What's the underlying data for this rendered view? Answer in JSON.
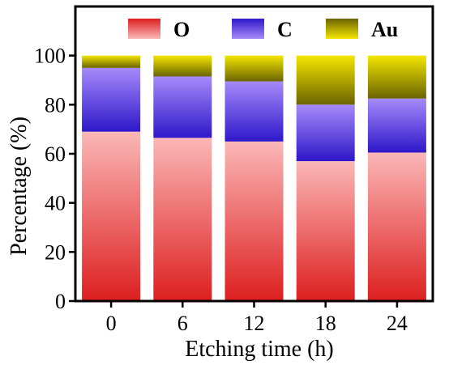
{
  "chart_data": {
    "type": "bar",
    "stacked": true,
    "xlabel": "Etching time (h)",
    "ylabel": "Percentage (%)",
    "categories": [
      "0",
      "6",
      "12",
      "18",
      "24"
    ],
    "ylim": [
      0,
      120
    ],
    "yticks": [
      0,
      20,
      40,
      60,
      80,
      100
    ],
    "grid": false,
    "legend_position": "top",
    "series": [
      {
        "name": "O",
        "values": [
          69,
          66.5,
          65,
          57,
          60.5
        ],
        "color_light": "#fbb7b7",
        "color_dark": "#dd1f1f"
      },
      {
        "name": "C",
        "values": [
          26,
          25,
          24.5,
          23,
          22
        ],
        "color_light": "#a58af9",
        "color_dark": "#2e17c9"
      },
      {
        "name": "Au",
        "values": [
          5,
          8.5,
          10.5,
          20,
          17.5
        ],
        "color_light": "#f4e600",
        "color_dark": "#6b6400"
      }
    ]
  }
}
